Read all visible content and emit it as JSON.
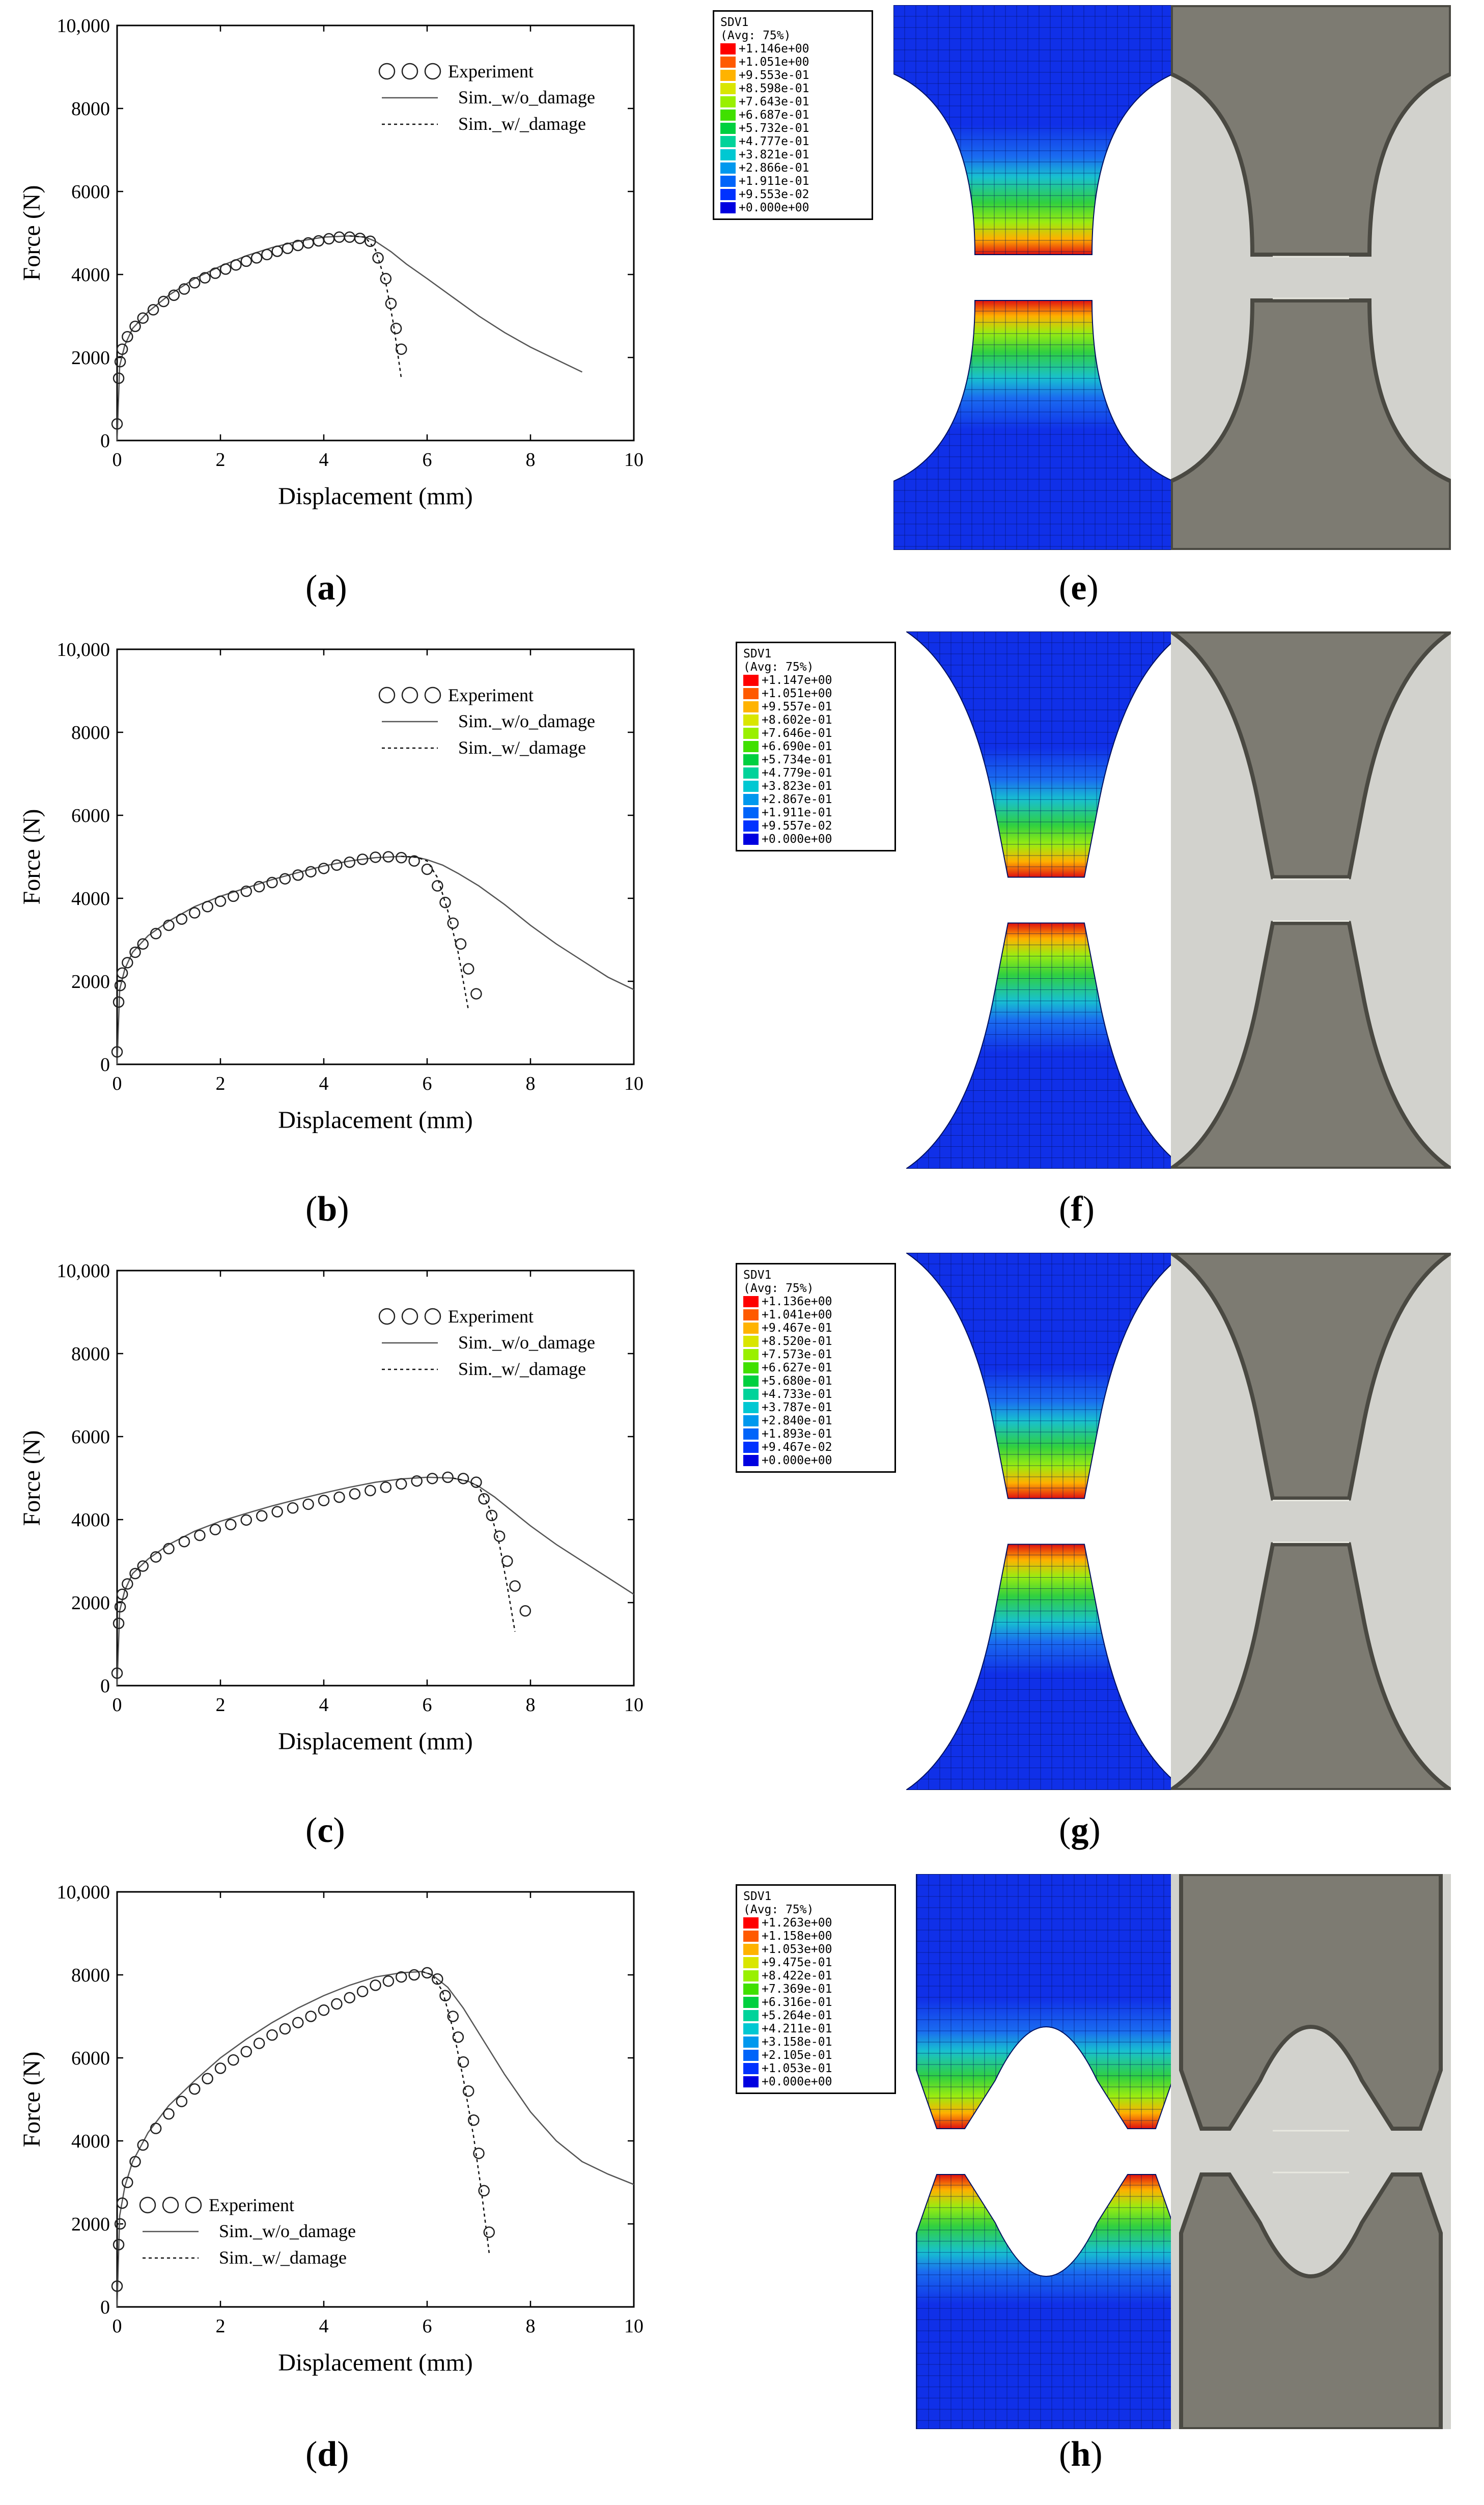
{
  "axis": {
    "xlabel": "Displacement (mm)",
    "ylabel": "Force (N)",
    "xticks": [
      "0",
      "2",
      "4",
      "6",
      "8",
      "10"
    ],
    "yticks": [
      "0",
      "2000",
      "4000",
      "6000",
      "8000",
      "10,000"
    ]
  },
  "legend": {
    "experiment": "Experiment",
    "sim_wo": "Sim._w/o_damage",
    "sim_w": "Sim._w/_damage"
  },
  "chart_data": [
    {
      "type": "line",
      "panel": "a",
      "xlim": [
        0,
        10
      ],
      "ylim": [
        0,
        10000
      ],
      "xlabel": "Displacement (mm)",
      "ylabel": "Force (N)",
      "legend_position": "top-right",
      "series": [
        {
          "name": "Experiment",
          "x": [
            0,
            0.03,
            0.06,
            0.1,
            0.2,
            0.35,
            0.5,
            0.7,
            0.9,
            1.1,
            1.3,
            1.5,
            1.7,
            1.9,
            2.1,
            2.3,
            2.5,
            2.7,
            2.9,
            3.1,
            3.3,
            3.5,
            3.7,
            3.9,
            4.1,
            4.3,
            4.5,
            4.7,
            4.9,
            5.05,
            5.2,
            5.3,
            5.4,
            5.5
          ],
          "y": [
            400,
            1500,
            1900,
            2200,
            2500,
            2750,
            2950,
            3150,
            3350,
            3500,
            3650,
            3800,
            3920,
            4030,
            4130,
            4230,
            4320,
            4400,
            4480,
            4560,
            4630,
            4700,
            4760,
            4810,
            4860,
            4900,
            4900,
            4870,
            4800,
            4400,
            3900,
            3300,
            2700,
            2200
          ]
        },
        {
          "name": "Sim._w/o_damage",
          "x": [
            0,
            0.05,
            0.15,
            0.3,
            0.6,
            1,
            1.5,
            2,
            2.5,
            3,
            3.5,
            4,
            4.5,
            4.8,
            5,
            5.3,
            5.6,
            6,
            6.5,
            7,
            7.5,
            8,
            8.5,
            9
          ],
          "y": [
            0,
            1800,
            2300,
            2700,
            3100,
            3500,
            3900,
            4200,
            4450,
            4650,
            4800,
            4900,
            4930,
            4900,
            4800,
            4550,
            4250,
            3900,
            3450,
            3000,
            2600,
            2250,
            1950,
            1650
          ]
        },
        {
          "name": "Sim._w/_damage",
          "x": [
            4.5,
            4.8,
            5,
            5.2,
            5.35,
            5.5
          ],
          "y": [
            4930,
            4900,
            4600,
            3800,
            2800,
            1500
          ]
        }
      ]
    },
    {
      "type": "line",
      "panel": "b",
      "xlim": [
        0,
        10
      ],
      "ylim": [
        0,
        10000
      ],
      "xlabel": "Displacement (mm)",
      "ylabel": "Force (N)",
      "legend_position": "top-right",
      "series": [
        {
          "name": "Experiment",
          "x": [
            0,
            0.03,
            0.06,
            0.1,
            0.2,
            0.35,
            0.5,
            0.75,
            1,
            1.25,
            1.5,
            1.75,
            2,
            2.25,
            2.5,
            2.75,
            3,
            3.25,
            3.5,
            3.75,
            4,
            4.25,
            4.5,
            4.75,
            5,
            5.25,
            5.5,
            5.75,
            6,
            6.2,
            6.35,
            6.5,
            6.65,
            6.8,
            6.95
          ],
          "y": [
            300,
            1500,
            1900,
            2200,
            2450,
            2700,
            2900,
            3150,
            3350,
            3500,
            3650,
            3800,
            3930,
            4050,
            4170,
            4280,
            4380,
            4470,
            4560,
            4640,
            4720,
            4800,
            4870,
            4940,
            4990,
            5000,
            4980,
            4900,
            4700,
            4300,
            3900,
            3400,
            2900,
            2300,
            1700
          ]
        },
        {
          "name": "Sim._w/o_damage",
          "x": [
            0,
            0.05,
            0.15,
            0.3,
            0.6,
            1,
            1.5,
            2,
            2.5,
            3,
            3.5,
            4,
            4.5,
            5,
            5.5,
            5.8,
            6,
            6.3,
            6.6,
            7,
            7.5,
            8,
            8.5,
            9,
            9.5,
            10
          ],
          "y": [
            0,
            1800,
            2300,
            2700,
            3100,
            3450,
            3800,
            4050,
            4250,
            4450,
            4620,
            4780,
            4900,
            4980,
            5010,
            4990,
            4930,
            4800,
            4600,
            4300,
            3850,
            3350,
            2900,
            2500,
            2100,
            1800
          ]
        },
        {
          "name": "Sim._w/_damage",
          "x": [
            5.5,
            5.8,
            6,
            6.2,
            6.4,
            6.6,
            6.8
          ],
          "y": [
            5010,
            4990,
            4900,
            4500,
            3700,
            2700,
            1300
          ]
        }
      ]
    },
    {
      "type": "line",
      "panel": "c",
      "xlim": [
        0,
        10
      ],
      "ylim": [
        0,
        10000
      ],
      "xlabel": "Displacement (mm)",
      "ylabel": "Force (N)",
      "legend_position": "top-right",
      "series": [
        {
          "name": "Experiment",
          "x": [
            0,
            0.03,
            0.06,
            0.1,
            0.2,
            0.35,
            0.5,
            0.75,
            1,
            1.3,
            1.6,
            1.9,
            2.2,
            2.5,
            2.8,
            3.1,
            3.4,
            3.7,
            4,
            4.3,
            4.6,
            4.9,
            5.2,
            5.5,
            5.8,
            6.1,
            6.4,
            6.7,
            6.95,
            7.1,
            7.25,
            7.4,
            7.55,
            7.7,
            7.9
          ],
          "y": [
            300,
            1500,
            1900,
            2200,
            2450,
            2700,
            2880,
            3100,
            3300,
            3470,
            3620,
            3760,
            3880,
            3990,
            4090,
            4190,
            4280,
            4370,
            4460,
            4540,
            4620,
            4700,
            4780,
            4860,
            4930,
            4990,
            5020,
            4990,
            4900,
            4500,
            4100,
            3600,
            3000,
            2400,
            1800
          ]
        },
        {
          "name": "Sim._w/o_damage",
          "x": [
            0,
            0.05,
            0.15,
            0.3,
            0.6,
            1,
            1.5,
            2,
            2.5,
            3,
            3.5,
            4,
            4.5,
            5,
            5.5,
            6,
            6.5,
            6.8,
            7,
            7.3,
            7.6,
            8,
            8.5,
            9,
            9.5,
            10
          ],
          "y": [
            0,
            1800,
            2300,
            2700,
            3050,
            3400,
            3720,
            3960,
            4150,
            4330,
            4490,
            4640,
            4780,
            4900,
            4980,
            5020,
            5000,
            4920,
            4800,
            4550,
            4250,
            3850,
            3400,
            3000,
            2600,
            2200
          ]
        },
        {
          "name": "Sim._w/_damage",
          "x": [
            6.5,
            6.8,
            7,
            7.2,
            7.4,
            7.55,
            7.7
          ],
          "y": [
            5000,
            4920,
            4800,
            4300,
            3400,
            2400,
            1300
          ]
        }
      ]
    },
    {
      "type": "line",
      "panel": "d",
      "xlim": [
        0,
        10
      ],
      "ylim": [
        0,
        10000
      ],
      "xlabel": "Displacement (mm)",
      "ylabel": "Force (N)",
      "legend_position": "bottom-left",
      "series": [
        {
          "name": "Experiment",
          "x": [
            0,
            0.03,
            0.06,
            0.1,
            0.2,
            0.35,
            0.5,
            0.75,
            1,
            1.25,
            1.5,
            1.75,
            2,
            2.25,
            2.5,
            2.75,
            3,
            3.25,
            3.5,
            3.75,
            4,
            4.25,
            4.5,
            4.75,
            5,
            5.25,
            5.5,
            5.75,
            6,
            6.2,
            6.35,
            6.5,
            6.6,
            6.7,
            6.8,
            6.9,
            7,
            7.1,
            7.2
          ],
          "y": [
            500,
            1500,
            2000,
            2500,
            3000,
            3500,
            3900,
            4300,
            4650,
            4950,
            5250,
            5500,
            5750,
            5950,
            6150,
            6350,
            6550,
            6700,
            6850,
            7000,
            7150,
            7300,
            7450,
            7600,
            7750,
            7850,
            7950,
            8000,
            8050,
            7900,
            7500,
            7000,
            6500,
            5900,
            5200,
            4500,
            3700,
            2800,
            1800
          ]
        },
        {
          "name": "Sim._w/o_damage",
          "x": [
            0,
            0.05,
            0.15,
            0.3,
            0.6,
            1,
            1.5,
            2,
            2.5,
            3,
            3.5,
            4,
            4.5,
            5,
            5.5,
            5.9,
            6.1,
            6.4,
            6.7,
            7,
            7.5,
            8,
            8.5,
            9,
            9.5,
            10
          ],
          "y": [
            0,
            2200,
            2900,
            3500,
            4200,
            4850,
            5450,
            6000,
            6450,
            6850,
            7200,
            7500,
            7750,
            7950,
            8050,
            8080,
            8000,
            7700,
            7200,
            6600,
            5600,
            4700,
            4000,
            3500,
            3200,
            2950
          ]
        },
        {
          "name": "Sim._w/_damage",
          "x": [
            5.9,
            6.1,
            6.3,
            6.5,
            6.7,
            6.9,
            7.05,
            7.2
          ],
          "y": [
            8080,
            8000,
            7600,
            6700,
            5500,
            4100,
            2800,
            1300
          ]
        }
      ]
    }
  ],
  "captions": [
    "a",
    "b",
    "c",
    "d",
    "e",
    "f",
    "g",
    "h"
  ],
  "fea_legends": [
    {
      "title": "SDV1",
      "avg": "(Avg: 75%)",
      "values": [
        "+1.146e+00",
        "+1.051e+00",
        "+9.553e-01",
        "+8.598e-01",
        "+7.643e-01",
        "+6.687e-01",
        "+5.732e-01",
        "+4.777e-01",
        "+3.821e-01",
        "+2.866e-01",
        "+1.911e-01",
        "+9.553e-02",
        "+0.000e+00"
      ]
    },
    {
      "title": "SDV1",
      "avg": "(Avg: 75%)",
      "values": [
        "+1.147e+00",
        "+1.051e+00",
        "+9.557e-01",
        "+8.602e-01",
        "+7.646e-01",
        "+6.690e-01",
        "+5.734e-01",
        "+4.779e-01",
        "+3.823e-01",
        "+2.867e-01",
        "+1.911e-01",
        "+9.557e-02",
        "+0.000e+00"
      ]
    },
    {
      "title": "SDV1",
      "avg": "(Avg: 75%)",
      "values": [
        "+1.136e+00",
        "+1.041e+00",
        "+9.467e-01",
        "+8.520e-01",
        "+7.573e-01",
        "+6.627e-01",
        "+5.680e-01",
        "+4.733e-01",
        "+3.787e-01",
        "+2.840e-01",
        "+1.893e-01",
        "+9.467e-02",
        "+0.000e+00"
      ]
    },
    {
      "title": "SDV1",
      "avg": "(Avg: 75%)",
      "values": [
        "+1.263e+00",
        "+1.158e+00",
        "+1.053e+00",
        "+9.475e-01",
        "+8.422e-01",
        "+7.369e-01",
        "+6.316e-01",
        "+5.264e-01",
        "+4.211e-01",
        "+3.158e-01",
        "+2.105e-01",
        "+1.053e-01",
        "+0.000e+00"
      ]
    }
  ],
  "colors": {
    "contour": [
      "#ff0000",
      "#ff5a00",
      "#ffb300",
      "#d9e600",
      "#99f000",
      "#40e000",
      "#00d040",
      "#00d39a",
      "#00c8d2",
      "#0098ee",
      "#0064fa",
      "#0032ff",
      "#0000e0"
    ],
    "mesh_blue": "#1030e8",
    "photo_bg": "#d2d2cd",
    "steel": "#7d7b72"
  }
}
